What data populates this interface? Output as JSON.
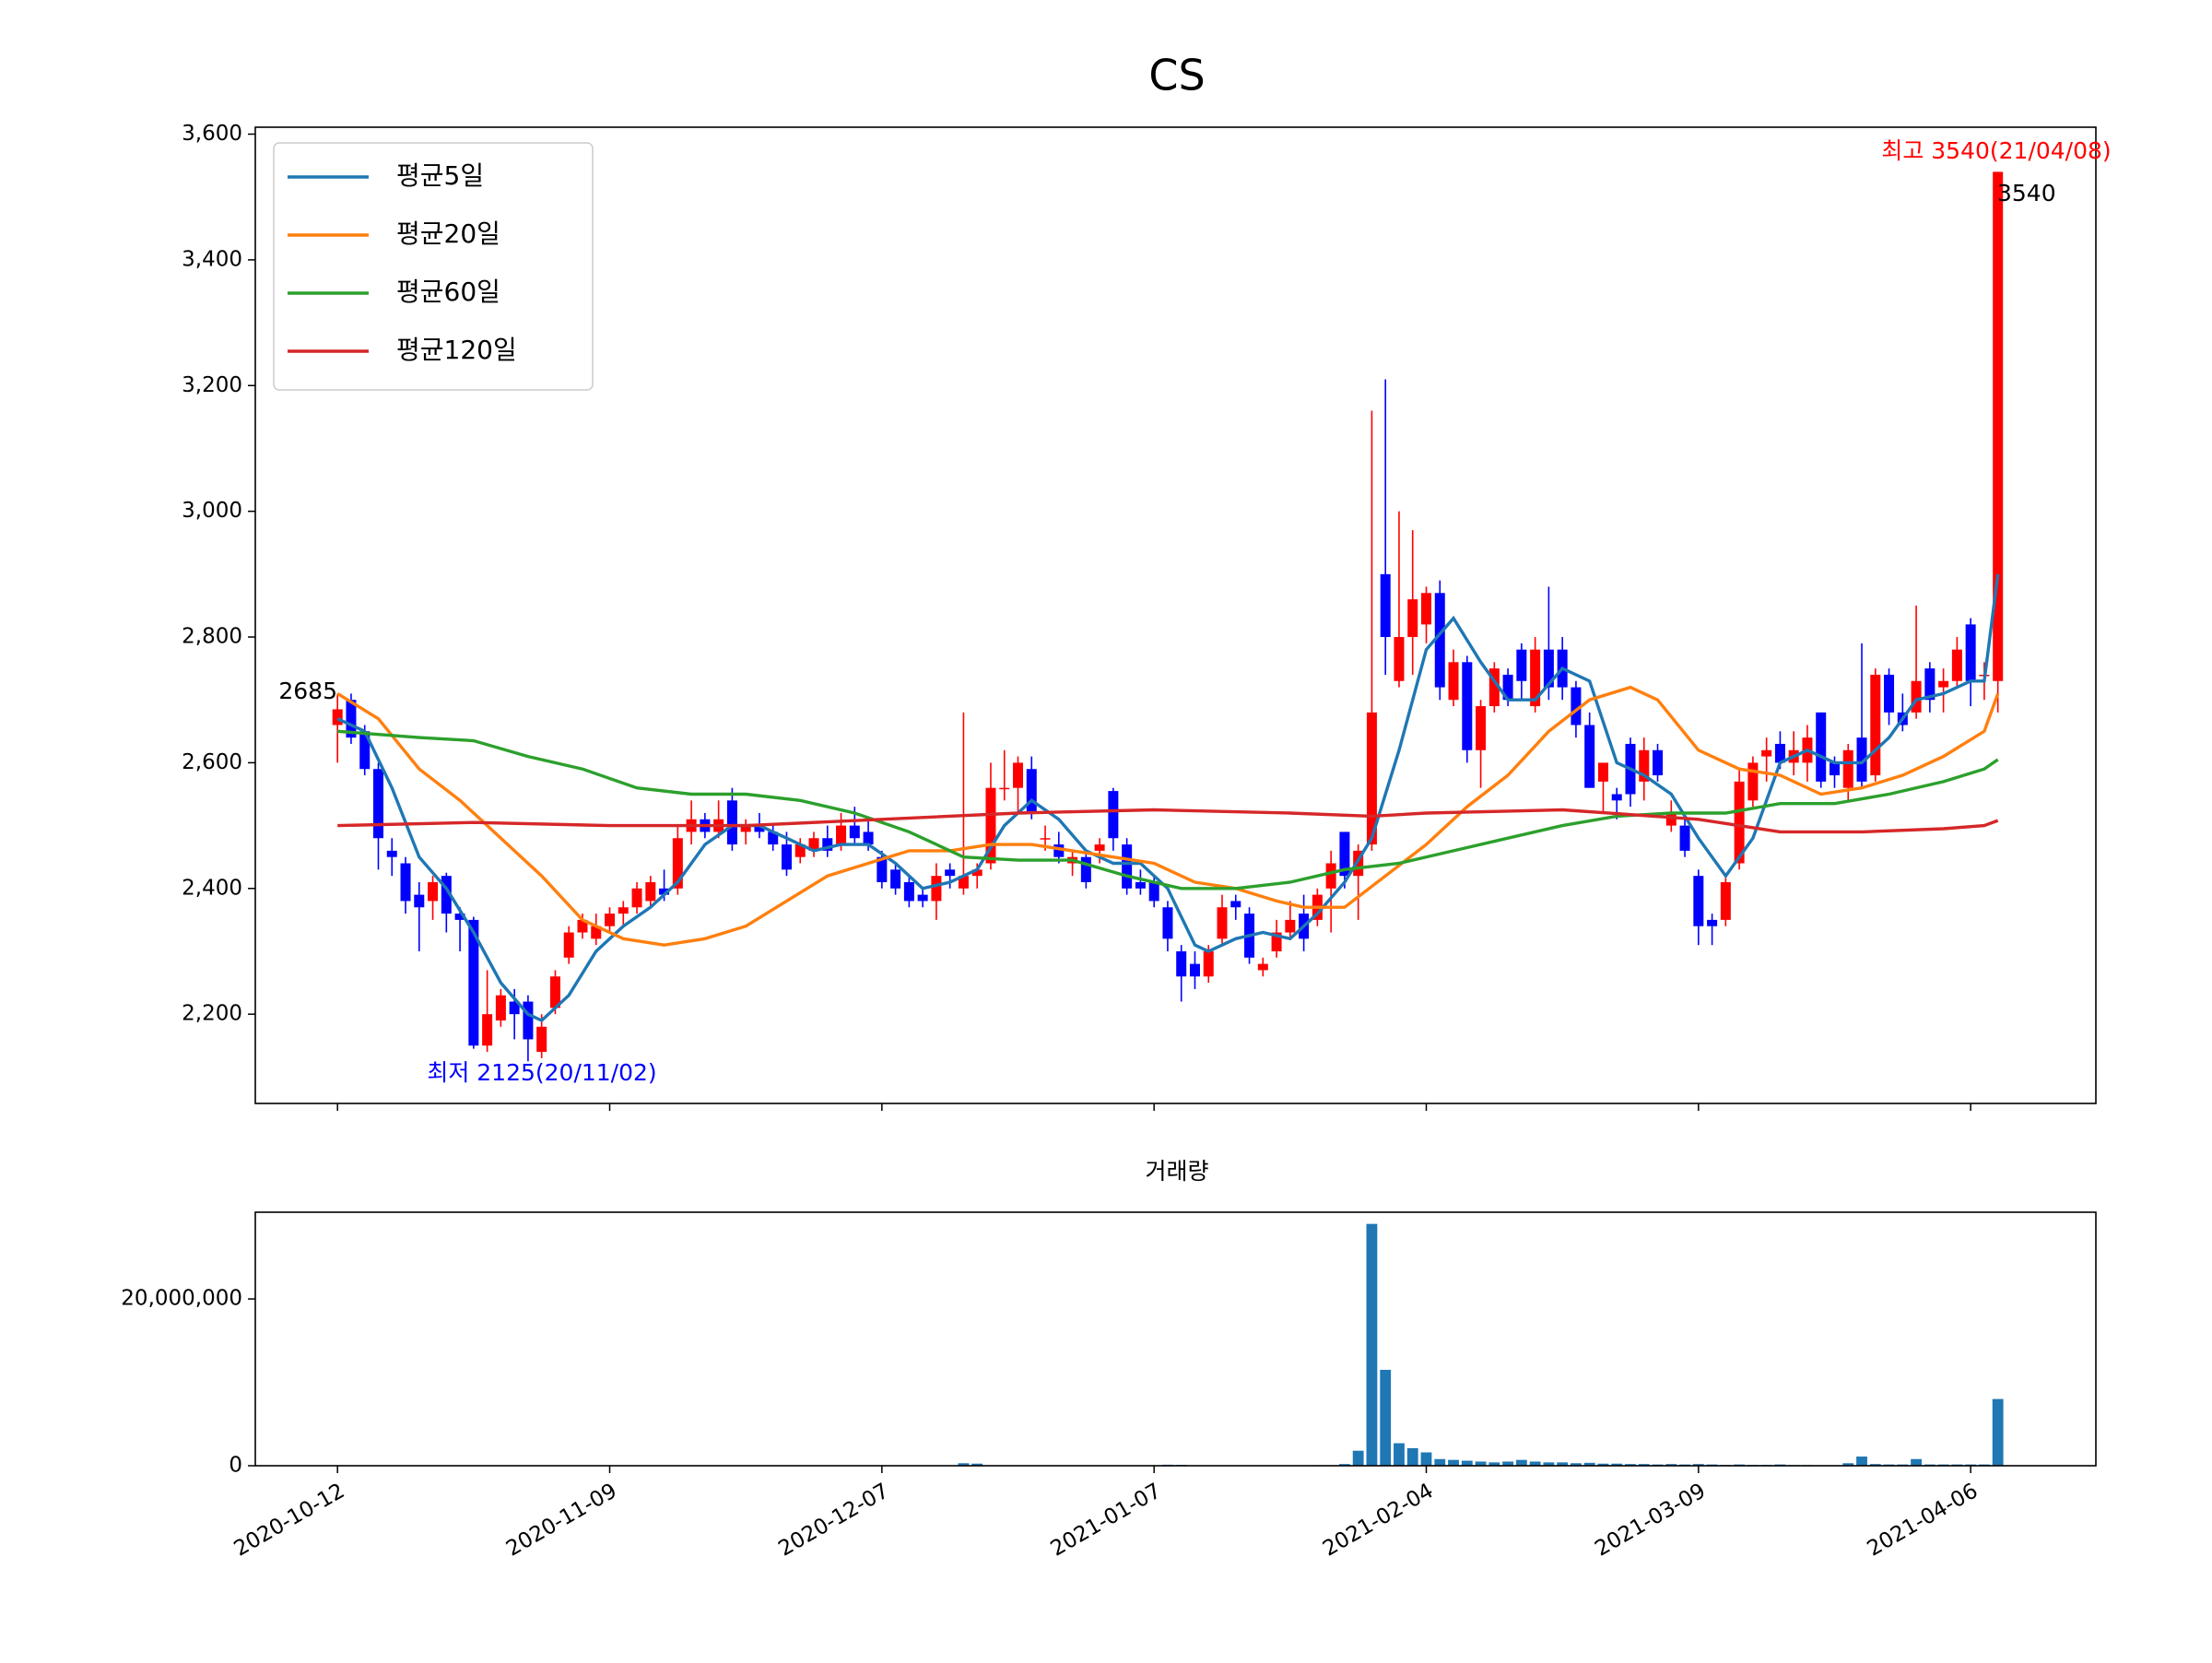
{
  "chart_data": [
    {
      "type": "candlestick",
      "title": "CS",
      "xlim": [
        -6.04,
        129.2
      ],
      "xticks": [
        {
          "value": 0,
          "label": "2020-10-12"
        },
        {
          "value": 20,
          "label": "2020-11-09"
        },
        {
          "value": 40,
          "label": "2020-12-07"
        },
        {
          "value": 60,
          "label": "2021-01-07"
        },
        {
          "value": 80,
          "label": "2021-02-04"
        },
        {
          "value": 100,
          "label": "2021-03-09"
        },
        {
          "value": 120,
          "label": "2021-04-06"
        }
      ],
      "ylim": [
        2058,
        3611
      ],
      "yticks": [
        {
          "value": 2200,
          "label": "2,200"
        },
        {
          "value": 2400,
          "label": "2,400"
        },
        {
          "value": 2600,
          "label": "2,600"
        },
        {
          "value": 2800,
          "label": "2,800"
        },
        {
          "value": 3000,
          "label": "3,000"
        },
        {
          "value": 3200,
          "label": "3,200"
        },
        {
          "value": 3400,
          "label": "3,400"
        },
        {
          "value": 3600,
          "label": "3,600"
        }
      ],
      "up_color": "#ff0000",
      "down_color": "#0000ff",
      "open": [
        2660,
        2700,
        2650,
        2590,
        2460,
        2440,
        2390,
        2380,
        2420,
        2360,
        2350,
        2150,
        2190,
        2220,
        2220,
        2140,
        2210,
        2290,
        2330,
        2320,
        2340,
        2360,
        2370,
        2380,
        2400,
        2400,
        2490,
        2510,
        2490,
        2540,
        2490,
        2500,
        2490,
        2470,
        2450,
        2460,
        2480,
        2470,
        2500,
        2490,
        2450,
        2430,
        2410,
        2390,
        2380,
        2430,
        2400,
        2420,
        2440,
        2560,
        2560,
        2590,
        2480,
        2470,
        2440,
        2450,
        2460,
        2555,
        2470,
        2410,
        2410,
        2370,
        2300,
        2280,
        2260,
        2320,
        2380,
        2360,
        2270,
        2300,
        2330,
        2360,
        2350,
        2400,
        2490,
        2420,
        2470,
        2900,
        2730,
        2800,
        2820,
        2870,
        2700,
        2760,
        2620,
        2690,
        2740,
        2780,
        2690,
        2780,
        2780,
        2720,
        2660,
        2570,
        2550,
        2630,
        2570,
        2620,
        2500,
        2500,
        2420,
        2350,
        2350,
        2440,
        2540,
        2610,
        2630,
        2600,
        2600,
        2680,
        2600,
        2560,
        2640,
        2580,
        2740,
        2680,
        2680,
        2750,
        2720,
        2730,
        2820,
        2740,
        2730
      ],
      "high": [
        2710,
        2710,
        2660,
        2600,
        2480,
        2450,
        2410,
        2420,
        2425,
        2370,
        2355,
        2270,
        2240,
        2240,
        2230,
        2200,
        2270,
        2340,
        2360,
        2360,
        2370,
        2380,
        2410,
        2420,
        2430,
        2500,
        2540,
        2520,
        2540,
        2560,
        2510,
        2520,
        2500,
        2490,
        2480,
        2490,
        2500,
        2520,
        2530,
        2510,
        2460,
        2440,
        2420,
        2400,
        2440,
        2440,
        2680,
        2440,
        2600,
        2620,
        2610,
        2610,
        2500,
        2490,
        2460,
        2460,
        2480,
        2560,
        2480,
        2430,
        2420,
        2380,
        2310,
        2300,
        2310,
        2390,
        2390,
        2370,
        2290,
        2350,
        2380,
        2390,
        2400,
        2460,
        2490,
        2470,
        3160,
        3210,
        3000,
        2970,
        2880,
        2890,
        2780,
        2770,
        2700,
        2760,
        2750,
        2790,
        2800,
        2880,
        2800,
        2730,
        2680,
        2600,
        2560,
        2640,
        2640,
        2630,
        2540,
        2510,
        2430,
        2360,
        2420,
        2590,
        2610,
        2640,
        2650,
        2650,
        2660,
        2680,
        2610,
        2630,
        2790,
        2750,
        2750,
        2710,
        2850,
        2760,
        2750,
        2800,
        2830,
        2760,
        3540
      ],
      "low": [
        2600,
        2630,
        2580,
        2430,
        2420,
        2360,
        2300,
        2350,
        2330,
        2300,
        2145,
        2140,
        2180,
        2160,
        2125,
        2130,
        2200,
        2280,
        2320,
        2310,
        2330,
        2340,
        2360,
        2370,
        2380,
        2390,
        2470,
        2480,
        2480,
        2460,
        2470,
        2480,
        2460,
        2420,
        2440,
        2450,
        2450,
        2460,
        2470,
        2460,
        2400,
        2390,
        2370,
        2370,
        2350,
        2400,
        2390,
        2400,
        2430,
        2540,
        2520,
        2510,
        2460,
        2440,
        2420,
        2400,
        2440,
        2460,
        2390,
        2390,
        2370,
        2300,
        2220,
        2240,
        2250,
        2310,
        2350,
        2280,
        2260,
        2290,
        2320,
        2300,
        2340,
        2330,
        2400,
        2350,
        2460,
        2740,
        2720,
        2740,
        2790,
        2700,
        2690,
        2600,
        2560,
        2680,
        2690,
        2700,
        2680,
        2700,
        2700,
        2640,
        2560,
        2520,
        2510,
        2530,
        2540,
        2570,
        2490,
        2450,
        2310,
        2310,
        2340,
        2430,
        2530,
        2570,
        2590,
        2580,
        2570,
        2560,
        2560,
        2540,
        2560,
        2570,
        2660,
        2650,
        2670,
        2680,
        2680,
        2720,
        2690,
        2700,
        2680
      ],
      "close": [
        2685,
        2640,
        2590,
        2480,
        2450,
        2380,
        2370,
        2410,
        2360,
        2350,
        2150,
        2200,
        2230,
        2200,
        2160,
        2180,
        2260,
        2330,
        2350,
        2340,
        2360,
        2370,
        2400,
        2410,
        2390,
        2480,
        2510,
        2490,
        2510,
        2470,
        2500,
        2490,
        2470,
        2430,
        2470,
        2480,
        2460,
        2500,
        2480,
        2470,
        2410,
        2400,
        2380,
        2380,
        2420,
        2420,
        2420,
        2430,
        2560,
        2560,
        2600,
        2520,
        2480,
        2450,
        2450,
        2410,
        2470,
        2480,
        2400,
        2400,
        2380,
        2320,
        2260,
        2260,
        2300,
        2370,
        2370,
        2290,
        2280,
        2330,
        2350,
        2320,
        2390,
        2440,
        2420,
        2460,
        2680,
        2800,
        2800,
        2860,
        2870,
        2720,
        2760,
        2620,
        2690,
        2750,
        2700,
        2730,
        2780,
        2720,
        2720,
        2660,
        2560,
        2600,
        2540,
        2550,
        2620,
        2580,
        2520,
        2460,
        2340,
        2340,
        2410,
        2570,
        2600,
        2620,
        2600,
        2620,
        2640,
        2570,
        2580,
        2620,
        2570,
        2740,
        2680,
        2660,
        2730,
        2700,
        2730,
        2780,
        2730,
        2740,
        3540
      ],
      "series": [
        {
          "name": "평균5일",
          "color": "#1f77b4",
          "x": [
            0,
            2,
            4,
            6,
            8,
            10,
            12,
            14,
            15,
            17,
            19,
            21,
            23,
            25,
            27,
            29,
            31,
            33,
            35,
            37,
            39,
            41,
            43,
            45,
            47,
            49,
            51,
            53,
            55,
            57,
            59,
            61,
            63,
            64,
            66,
            68,
            70,
            72,
            74,
            76,
            78,
            80,
            82,
            84,
            86,
            88,
            90,
            92,
            94,
            96,
            98,
            100,
            102,
            104,
            106,
            108,
            110,
            112,
            114,
            116,
            118,
            120,
            121,
            122
          ],
          "values": [
            2670,
            2650,
            2560,
            2450,
            2400,
            2330,
            2250,
            2200,
            2190,
            2230,
            2300,
            2340,
            2370,
            2410,
            2470,
            2500,
            2500,
            2480,
            2460,
            2470,
            2470,
            2440,
            2400,
            2410,
            2430,
            2500,
            2540,
            2510,
            2460,
            2440,
            2440,
            2400,
            2310,
            2300,
            2320,
            2330,
            2320,
            2360,
            2410,
            2480,
            2620,
            2780,
            2830,
            2760,
            2700,
            2700,
            2750,
            2730,
            2600,
            2580,
            2550,
            2480,
            2420,
            2480,
            2600,
            2620,
            2600,
            2600,
            2640,
            2700,
            2710,
            2730,
            2730,
            2900
          ]
        },
        {
          "name": "평균20일",
          "color": "#ff7f0e",
          "x": [
            0,
            3,
            6,
            9,
            12,
            15,
            18,
            21,
            24,
            27,
            30,
            33,
            36,
            39,
            42,
            45,
            48,
            51,
            54,
            57,
            60,
            63,
            66,
            69,
            71,
            74,
            77,
            80,
            83,
            86,
            89,
            92,
            95,
            97,
            100,
            103,
            106,
            109,
            112,
            115,
            118,
            121,
            122
          ],
          "values": [
            2710,
            2670,
            2590,
            2540,
            2480,
            2420,
            2350,
            2320,
            2310,
            2320,
            2340,
            2380,
            2420,
            2440,
            2460,
            2460,
            2470,
            2470,
            2460,
            2450,
            2440,
            2410,
            2400,
            2380,
            2370,
            2370,
            2420,
            2470,
            2530,
            2580,
            2650,
            2700,
            2720,
            2700,
            2620,
            2590,
            2580,
            2550,
            2560,
            2580,
            2610,
            2650,
            2710
          ]
        },
        {
          "name": "평균60일",
          "color": "#2ca02c",
          "x": [
            0,
            6,
            10,
            14,
            18,
            22,
            26,
            30,
            34,
            38,
            42,
            46,
            50,
            54,
            58,
            62,
            66,
            70,
            74,
            78,
            82,
            86,
            90,
            94,
            98,
            102,
            106,
            110,
            114,
            118,
            121,
            122
          ],
          "values": [
            2650,
            2640,
            2635,
            2610,
            2590,
            2560,
            2550,
            2550,
            2540,
            2520,
            2490,
            2450,
            2445,
            2445,
            2420,
            2400,
            2400,
            2410,
            2430,
            2440,
            2460,
            2480,
            2500,
            2515,
            2520,
            2520,
            2535,
            2535,
            2550,
            2570,
            2590,
            2605
          ]
        },
        {
          "name": "평균120일",
          "color": "#d62728",
          "x": [
            0,
            10,
            20,
            30,
            40,
            50,
            60,
            70,
            76,
            80,
            90,
            100,
            106,
            112,
            118,
            121,
            122
          ],
          "values": [
            2500,
            2505,
            2500,
            2500,
            2510,
            2520,
            2525,
            2520,
            2515,
            2520,
            2525,
            2510,
            2490,
            2490,
            2495,
            2500,
            2508
          ]
        }
      ],
      "legend": "upper left",
      "annotations": [
        "최고 3540(21/04/08)",
        "3540",
        "2685",
        "최저 2125(20/11/02)"
      ]
    },
    {
      "type": "bar",
      "title": "거래량",
      "color": "#1f77b4",
      "xlim": [
        -6.04,
        129.2
      ],
      "xticks": [
        {
          "value": 0,
          "label": "2020-10-12"
        },
        {
          "value": 20,
          "label": "2020-11-09"
        },
        {
          "value": 40,
          "label": "2020-12-07"
        },
        {
          "value": 60,
          "label": "2021-01-07"
        },
        {
          "value": 80,
          "label": "2021-02-04"
        },
        {
          "value": 100,
          "label": "2021-03-09"
        },
        {
          "value": 120,
          "label": "2021-04-06"
        }
      ],
      "ylim": [
        0,
        30400000
      ],
      "yticks": [
        0,
        {
          "value": 20000000,
          "label": "20,000,000"
        }
      ],
      "values": [
        30000,
        30000,
        30000,
        30000,
        30000,
        30000,
        30000,
        30000,
        30000,
        30000,
        30000,
        30000,
        30000,
        30000,
        30000,
        30000,
        30000,
        30000,
        30000,
        30000,
        30000,
        30000,
        30000,
        30000,
        30000,
        30000,
        30000,
        30000,
        30000,
        30000,
        30000,
        30000,
        30000,
        30000,
        30000,
        30000,
        30000,
        30000,
        30000,
        30000,
        30000,
        30000,
        30000,
        30000,
        30000,
        30000,
        300000,
        250000,
        30000,
        30000,
        30000,
        30000,
        30000,
        30000,
        30000,
        30000,
        30000,
        30000,
        30000,
        30000,
        30000,
        120000,
        100000,
        30000,
        30000,
        30000,
        30000,
        30000,
        30000,
        30000,
        30000,
        30000,
        60000,
        60000,
        200000,
        1800000,
        29000000,
        11500000,
        2700000,
        2100000,
        1600000,
        800000,
        700000,
        600000,
        500000,
        400000,
        500000,
        700000,
        500000,
        400000,
        400000,
        300000,
        350000,
        250000,
        250000,
        200000,
        200000,
        150000,
        200000,
        150000,
        200000,
        150000,
        100000,
        150000,
        100000,
        100000,
        150000,
        80000,
        80000,
        60000,
        60000,
        300000,
        1100000,
        200000,
        150000,
        150000,
        800000,
        150000,
        150000,
        150000,
        150000,
        150000,
        8000000
      ]
    }
  ]
}
